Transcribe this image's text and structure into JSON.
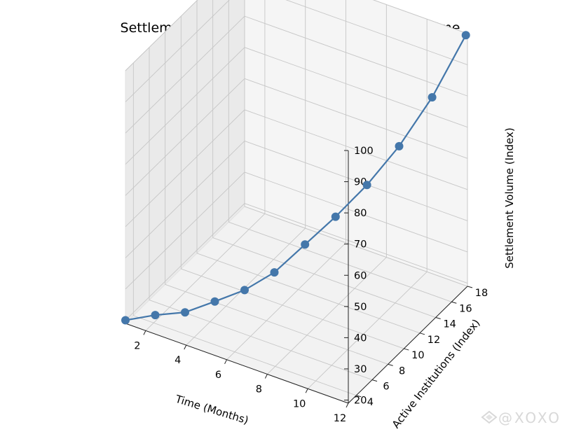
{
  "chart_data": {
    "type": "line",
    "projection": "3d",
    "title": "Settlement-Driven Demand Compounds Over Time",
    "xlabel": "Time (Months)",
    "ylabel": "Active Institutions (Index)",
    "zlabel": "Settlement Volume (Index)",
    "xlim": [
      1,
      12
    ],
    "ylim": [
      3,
      18
    ],
    "zlim": [
      19,
      100
    ],
    "xticks": [
      "2",
      "4",
      "6",
      "8",
      "10",
      "12"
    ],
    "yticks": [
      "4",
      "6",
      "8",
      "10",
      "12",
      "14",
      "16",
      "18"
    ],
    "zticks": [
      "20",
      "30",
      "40",
      "50",
      "60",
      "70",
      "80",
      "90",
      "100"
    ],
    "grid": true,
    "series": [
      {
        "color": "#4477aa",
        "marker": "circle",
        "x": [
          1,
          2,
          3,
          4,
          5,
          6,
          7,
          8,
          9,
          10,
          11,
          12
        ],
        "y": [
          3,
          4.2,
          5.4,
          6.6,
          7.8,
          9.0,
          10.3,
          11.6,
          13.0,
          14.5,
          16.1,
          17.8
        ],
        "z": [
          20,
          21,
          21.2,
          24,
          27,
          32,
          40,
          48,
          57,
          68,
          82,
          100
        ]
      }
    ]
  },
  "watermark": "@XOXO"
}
